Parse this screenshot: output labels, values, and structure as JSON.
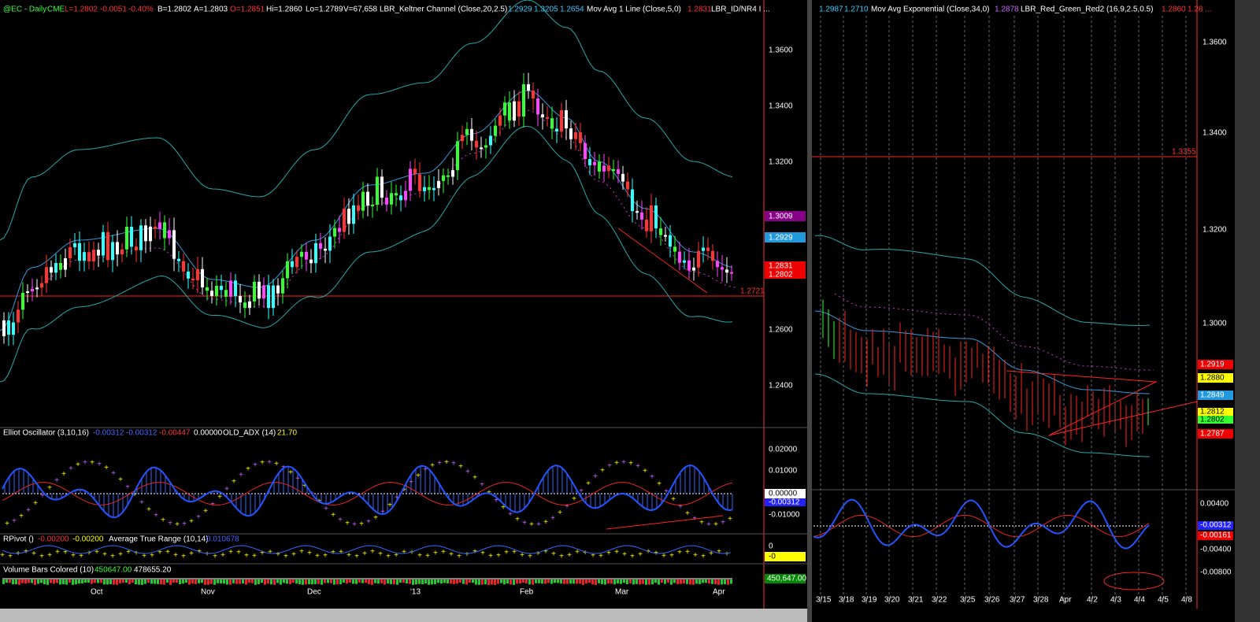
{
  "left": {
    "header": [
      "@EC - Daily",
      "CME",
      "L=1.2802",
      "-0.0051",
      "-0.40%",
      "B=1.2802",
      "A=1.2803",
      "O=1.2851",
      "Hi=1.2860",
      "Lo=1.2789",
      "V=67,658",
      "LBR_Keltner Channel (Close,20,2.5)",
      "1.2929",
      "1.3205",
      "1.2654",
      "Mov Avg 1 Line (Close,5,0)",
      "1.2831",
      "LBR_ID/NR4 I ..."
    ],
    "price_axis": [
      "1.3600",
      "1.3400",
      "1.3200",
      "1.2600",
      "1.2400"
    ],
    "price_tags": [
      "1.3009",
      "1.2929",
      "1.2831",
      "1.2802",
      "1.2721"
    ],
    "oscillator": {
      "header": [
        "Elliot Oscillator (3,10,16)",
        "-0.00312",
        "-0.00312",
        "-0.00447",
        "0.00000",
        "OLD_ADX (14)",
        "21.70"
      ],
      "axis": [
        "0.02000",
        "0.01000",
        "0.00000",
        "-0.01000"
      ],
      "tag": "-0.00312"
    },
    "pivot": {
      "header": [
        "RPivot ()",
        "-0.00200",
        "-0.00200",
        "Average True Range (10,14)",
        "0.010678"
      ],
      "axis": [
        "0",
        "-0"
      ]
    },
    "volume": {
      "header": [
        "Volume Bars Colored (10)",
        "450647.00",
        "478655.20"
      ],
      "tag": "450,647.00"
    },
    "dates": [
      "Oct",
      "Nov",
      "Dec",
      "'13",
      "Feb",
      "Mar",
      "Apr"
    ]
  },
  "right": {
    "header": [
      "1.2987",
      "1.2710",
      "Mov Avg Exponential (Close,34,0)",
      "1.2878",
      "LBR_Red_Green_Red2 (16,9,2.5,0.5)",
      "1.2860",
      "1.28 ..."
    ],
    "price_axis": [
      "1.3600",
      "1.3400",
      "1.3200",
      "1.3000"
    ],
    "price_tags": [
      "1.3355",
      "1.2919",
      "1.2880",
      "1.2849",
      "1.2812",
      "1.2802",
      "1.2787"
    ],
    "osc_axis": [
      "0.00400",
      "-0.00400",
      "-0.00800"
    ],
    "osc_tags": [
      "-0.00312",
      "-0.00161"
    ],
    "dates": [
      "3/15",
      "3/18",
      "3/19",
      "3/20",
      "3/21",
      "3/22",
      "3/25",
      "3/26",
      "3/27",
      "3/28",
      "Apr",
      "4/2",
      "4/3",
      "4/4",
      "4/5",
      "4/8"
    ]
  }
}
